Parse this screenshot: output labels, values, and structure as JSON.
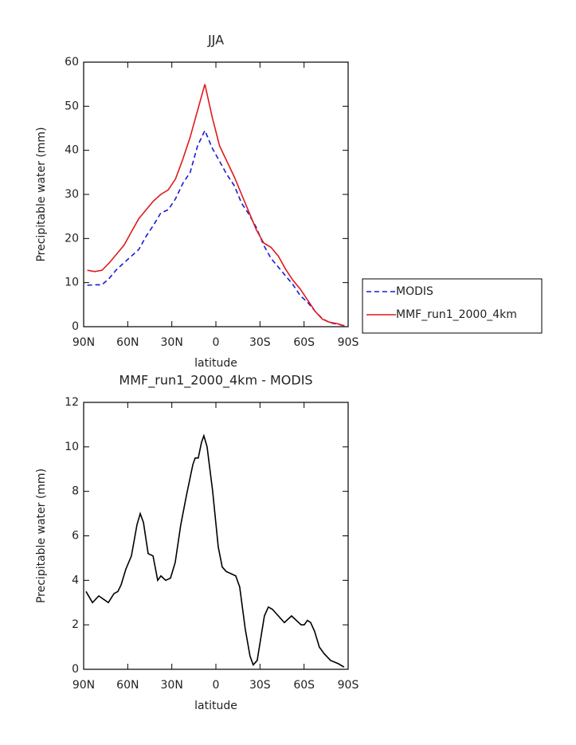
{
  "chart_data": [
    {
      "type": "line",
      "title": "JJA",
      "xlabel": "latitude",
      "ylabel": "Precipitable water (mm)",
      "xlim": [
        90,
        -90
      ],
      "xticks": [
        {
          "value": 90,
          "label": "90N"
        },
        {
          "value": 60,
          "label": "60N"
        },
        {
          "value": 30,
          "label": "30N"
        },
        0,
        {
          "value": -30,
          "label": "30S"
        },
        {
          "value": -60,
          "label": "60S"
        },
        {
          "value": -90,
          "label": "90S"
        }
      ],
      "ylim": [
        0,
        60
      ],
      "yticks": [
        0,
        10,
        20,
        30,
        40,
        50,
        60
      ],
      "legend": "right",
      "x": [
        87.5,
        82.5,
        77.5,
        72.5,
        67.5,
        62.5,
        57.5,
        52.5,
        47.5,
        42.5,
        37.5,
        32.5,
        27.5,
        22.5,
        17.5,
        12.5,
        7.5,
        2.5,
        -2.5,
        -7.5,
        -12.5,
        -17.5,
        -22.5,
        -27.5,
        -32.5,
        -37.5,
        -42.5,
        -47.5,
        -52.5,
        -57.5,
        -62.5,
        -67.5,
        -72.5,
        -77.5,
        -82.5,
        -87.5
      ],
      "series": [
        {
          "name": "MODIS",
          "color": "#1a1ad6",
          "dash": true,
          "values": [
            9.4,
            9.5,
            9.5,
            11,
            13,
            14.5,
            16,
            17.5,
            20.5,
            23,
            25.8,
            26.5,
            29,
            32.5,
            35,
            41,
            44.5,
            40.5,
            37.5,
            34.5,
            32,
            28,
            25.5,
            22.5,
            18.5,
            15.5,
            13.5,
            11.5,
            9.5,
            7,
            5.5,
            3.5,
            1.8,
            0.9,
            0.6,
            0.2
          ]
        },
        {
          "name": "MMF_run1_2000_4km",
          "color": "#e01a1a",
          "dash": false,
          "values": [
            12.8,
            12.5,
            12.8,
            14.5,
            16.5,
            18.5,
            21.5,
            24.5,
            26.5,
            28.5,
            30,
            31,
            33.5,
            38,
            43,
            49,
            55,
            47.5,
            41,
            37.5,
            34,
            30,
            26,
            22,
            19,
            18,
            16,
            13,
            10.5,
            8.5,
            6,
            3.5,
            1.7,
            1.0,
            0.7,
            0.2
          ]
        }
      ]
    },
    {
      "type": "line",
      "title": "MMF_run1_2000_4km - MODIS",
      "xlabel": "latitude",
      "ylabel": "Precipitable water (mm)",
      "xlim": [
        90,
        -90
      ],
      "xticks": [
        {
          "value": 90,
          "label": "90N"
        },
        {
          "value": 60,
          "label": "60N"
        },
        {
          "value": 30,
          "label": "30N"
        },
        0,
        {
          "value": -30,
          "label": "30S"
        },
        {
          "value": -60,
          "label": "60S"
        },
        {
          "value": -90,
          "label": "90S"
        }
      ],
      "ylim": [
        0,
        12
      ],
      "yticks": [
        0,
        2,
        4,
        6,
        8,
        10,
        12
      ],
      "color": "#000000",
      "x": [
        88.4,
        84,
        79.7,
        73.2,
        69.4,
        66.7,
        64.5,
        61.3,
        57.5,
        53.7,
        51.5,
        49.3,
        46.1,
        42.8,
        39.6,
        37.4,
        34.2,
        30.9,
        27.7,
        23.9,
        20.1,
        15.7,
        14.1,
        12,
        9.8,
        8.2,
        6,
        2.2,
        -1.6,
        -4.3,
        -7,
        -13.5,
        -16.2,
        -20,
        -23.2,
        -25.4,
        -28.1,
        -30.3,
        -33,
        -35.7,
        -38.4,
        -46.6,
        -51.5,
        -58,
        -60.1,
        -62.3,
        -64.5,
        -67.2,
        -70.4,
        -73.7,
        -78,
        -83.4,
        -87.2
      ],
      "values": [
        3.5,
        3.0,
        3.3,
        3.0,
        3.4,
        3.5,
        3.8,
        4.5,
        5.1,
        6.5,
        7.0,
        6.6,
        5.2,
        5.1,
        4.0,
        4.2,
        4.0,
        4.1,
        4.8,
        6.5,
        7.8,
        9.2,
        9.5,
        9.5,
        10.2,
        10.5,
        10.0,
        8.0,
        5.5,
        4.6,
        4.4,
        4.2,
        3.7,
        1.8,
        0.6,
        0.2,
        0.4,
        1.3,
        2.4,
        2.8,
        2.7,
        2.1,
        2.4,
        2.0,
        2.0,
        2.2,
        2.1,
        1.7,
        1.0,
        0.7,
        0.4,
        0.25,
        0.1
      ]
    }
  ]
}
